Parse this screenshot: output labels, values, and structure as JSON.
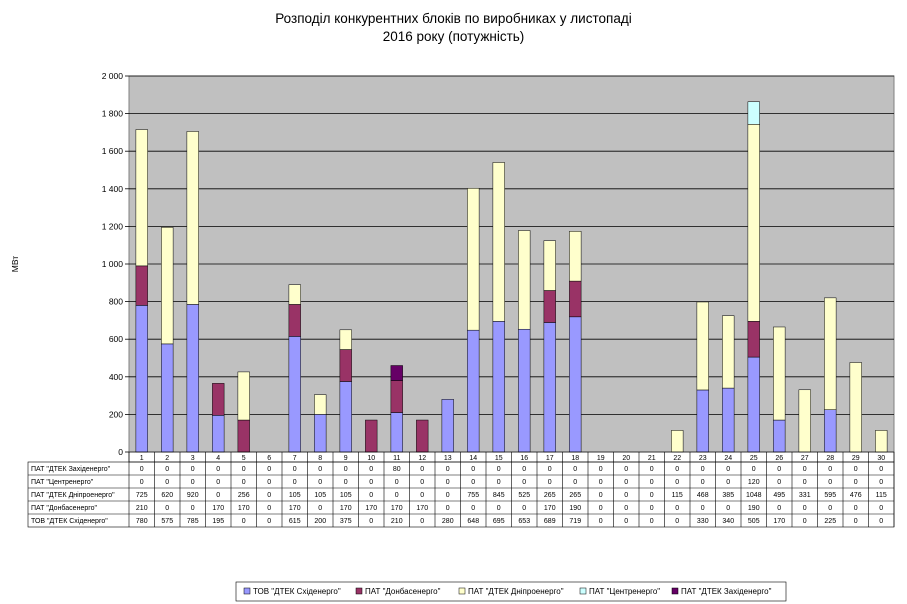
{
  "chart_data": {
    "type": "bar",
    "stacked": true,
    "title_lines": [
      "Розподіл конкурентних блоків по виробниках у листопаді",
      "2016 року (потужність)"
    ],
    "ylabel": "МВт",
    "ylim": [
      0,
      2000
    ],
    "yticks": [
      0,
      200,
      400,
      600,
      800,
      1000,
      1200,
      1400,
      1600,
      1800,
      2000
    ],
    "ytick_labels": [
      "0",
      "200",
      "400",
      "600",
      "800",
      "1 000",
      "1 200",
      "1 400",
      "1 600",
      "1 800",
      "2 000"
    ],
    "grid": true,
    "plot_background": "#c0c0c0",
    "legend_position": "bottom",
    "categories": [
      "1",
      "2",
      "3",
      "4",
      "5",
      "6",
      "7",
      "8",
      "9",
      "10",
      "11",
      "12",
      "13",
      "14",
      "15",
      "16",
      "17",
      "18",
      "19",
      "20",
      "21",
      "22",
      "23",
      "24",
      "25",
      "26",
      "27",
      "28",
      "29",
      "30"
    ],
    "series": [
      {
        "name": "ТОВ \"ДТЕК Східенерго\"",
        "color": "#9999ff",
        "values": [
          780,
          575,
          785,
          195,
          0,
          0,
          615,
          200,
          375,
          0,
          210,
          0,
          280,
          648,
          695,
          653,
          689,
          719,
          0,
          0,
          0,
          0,
          330,
          340,
          505,
          170,
          0,
          225,
          0,
          0
        ]
      },
      {
        "name": "ПАТ \"Донбасенерго\"",
        "color": "#993366",
        "values": [
          210,
          0,
          0,
          170,
          170,
          0,
          170,
          0,
          170,
          170,
          170,
          170,
          0,
          0,
          0,
          0,
          170,
          190,
          0,
          0,
          0,
          0,
          0,
          0,
          190,
          0,
          0,
          0,
          0,
          0
        ]
      },
      {
        "name": "ПАТ \"ДТЕК Дніпроенерго\"",
        "color": "#ffffcc",
        "values": [
          725,
          620,
          920,
          0,
          256,
          0,
          105,
          105,
          105,
          0,
          0,
          0,
          0,
          755,
          845,
          525,
          265,
          265,
          0,
          0,
          0,
          115,
          468,
          385,
          1048,
          495,
          331,
          595,
          476,
          115
        ]
      },
      {
        "name": "ПАТ \"Центренерго\"",
        "color": "#ccffff",
        "values": [
          0,
          0,
          0,
          0,
          0,
          0,
          0,
          0,
          0,
          0,
          0,
          0,
          0,
          0,
          0,
          0,
          0,
          0,
          0,
          0,
          0,
          0,
          0,
          0,
          120,
          0,
          0,
          0,
          0,
          0
        ]
      },
      {
        "name": "ПАТ \"ДТЕК Західенерго\"",
        "color": "#660066",
        "values": [
          0,
          0,
          0,
          0,
          0,
          0,
          0,
          0,
          0,
          0,
          80,
          0,
          0,
          0,
          0,
          0,
          0,
          0,
          0,
          0,
          0,
          0,
          0,
          0,
          0,
          0,
          0,
          0,
          0,
          0
        ]
      }
    ],
    "table_row_order": [
      4,
      3,
      2,
      1,
      0
    ]
  }
}
